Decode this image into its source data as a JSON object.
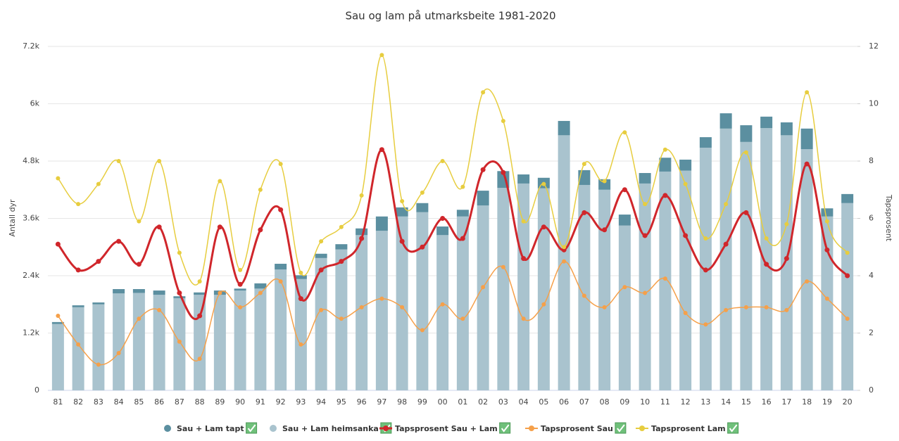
{
  "chart_data": {
    "type": "combo",
    "title": "Sau og lam på utmarksbeite 1981-2020",
    "y_label": "Antall dyr",
    "y2_label": "Tapsprosent",
    "categories": [
      "81",
      "82",
      "83",
      "84",
      "85",
      "86",
      "87",
      "88",
      "89",
      "90",
      "91",
      "92",
      "93",
      "94",
      "95",
      "96",
      "97",
      "98",
      "99",
      "00",
      "01",
      "02",
      "03",
      "04",
      "05",
      "06",
      "07",
      "08",
      "09",
      "10",
      "11",
      "12",
      "13",
      "14",
      "15",
      "16",
      "17",
      "18",
      "19",
      "20"
    ],
    "ylim": [
      0,
      7200
    ],
    "yticks": [
      0,
      {
        "value": 1200,
        "label": "1.2k"
      },
      {
        "value": 2400,
        "label": "2.4k"
      },
      {
        "value": 3600,
        "label": "3.6k"
      },
      {
        "value": 4800,
        "label": "4.8k"
      },
      {
        "value": 6000,
        "label": "6k"
      },
      {
        "value": 7200,
        "label": "7.2k"
      }
    ],
    "y2lim": [
      0,
      12
    ],
    "y2ticks": [
      0,
      2,
      4,
      6,
      8,
      10,
      12
    ],
    "grid": true,
    "legend": "bottom",
    "series": [
      {
        "name": "Sau + Lam tapt",
        "type": "bar",
        "stack": 1,
        "color": "#5b8fa0",
        "values": [
          40,
          40,
          40,
          90,
          80,
          90,
          40,
          50,
          90,
          40,
          110,
          120,
          80,
          90,
          110,
          140,
          300,
          190,
          190,
          180,
          140,
          310,
          350,
          190,
          220,
          300,
          310,
          220,
          230,
          220,
          290,
          230,
          220,
          320,
          350,
          240,
          270,
          430,
          170,
          190
        ]
      },
      {
        "name": "Sau + Lam heimsanka",
        "type": "bar",
        "stack": 0,
        "color": "#a9c3ce",
        "values": [
          1390,
          1740,
          1800,
          2030,
          2040,
          2000,
          1930,
          2000,
          2000,
          2090,
          2130,
          2530,
          2330,
          2770,
          2950,
          3250,
          3340,
          3640,
          3730,
          3250,
          3640,
          3870,
          4240,
          4330,
          4230,
          5340,
          4300,
          4200,
          3450,
          4330,
          4580,
          4600,
          5080,
          5480,
          5200,
          5490,
          5340,
          5050,
          3640,
          3920
        ]
      },
      {
        "name": "Tapsprosent Sau + Lam",
        "type": "line",
        "axis": "y2",
        "color": "#d0262b",
        "values": [
          5.1,
          4.2,
          4.5,
          5.2,
          4.4,
          5.7,
          3.4,
          2.6,
          5.7,
          3.7,
          5.6,
          6.3,
          3.2,
          4.2,
          4.5,
          5.3,
          8.4,
          5.2,
          5.0,
          6.0,
          5.3,
          7.7,
          7.6,
          4.6,
          5.7,
          4.9,
          6.2,
          5.6,
          7.0,
          5.4,
          6.8,
          5.4,
          4.2,
          5.1,
          6.2,
          4.4,
          4.6,
          7.9,
          4.9,
          4.0
        ]
      },
      {
        "name": "Tapsprosent Sau",
        "type": "line",
        "axis": "y2",
        "color": "#f5a04a",
        "values": [
          2.6,
          1.6,
          0.9,
          1.3,
          2.5,
          2.8,
          1.7,
          1.1,
          3.4,
          2.9,
          3.4,
          3.8,
          1.6,
          2.8,
          2.5,
          2.9,
          3.2,
          2.9,
          2.1,
          3.0,
          2.5,
          3.6,
          4.3,
          2.5,
          3.0,
          4.5,
          3.3,
          2.9,
          3.6,
          3.4,
          3.9,
          2.7,
          2.3,
          2.8,
          2.9,
          2.9,
          2.8,
          3.8,
          3.2,
          2.5
        ]
      },
      {
        "name": "Tapsprosent Lam",
        "type": "line",
        "axis": "y2",
        "color": "#e7cd3f",
        "values": [
          7.4,
          6.5,
          7.2,
          8.0,
          5.9,
          8.0,
          4.8,
          3.8,
          7.3,
          4.2,
          7.0,
          7.9,
          4.1,
          5.2,
          5.7,
          6.8,
          11.7,
          6.6,
          6.9,
          8.0,
          7.1,
          10.4,
          9.4,
          5.9,
          7.2,
          5.0,
          7.9,
          7.3,
          9.0,
          6.5,
          8.4,
          7.2,
          5.3,
          6.5,
          8.3,
          5.3,
          5.8,
          10.4,
          5.9,
          4.8
        ]
      }
    ]
  }
}
